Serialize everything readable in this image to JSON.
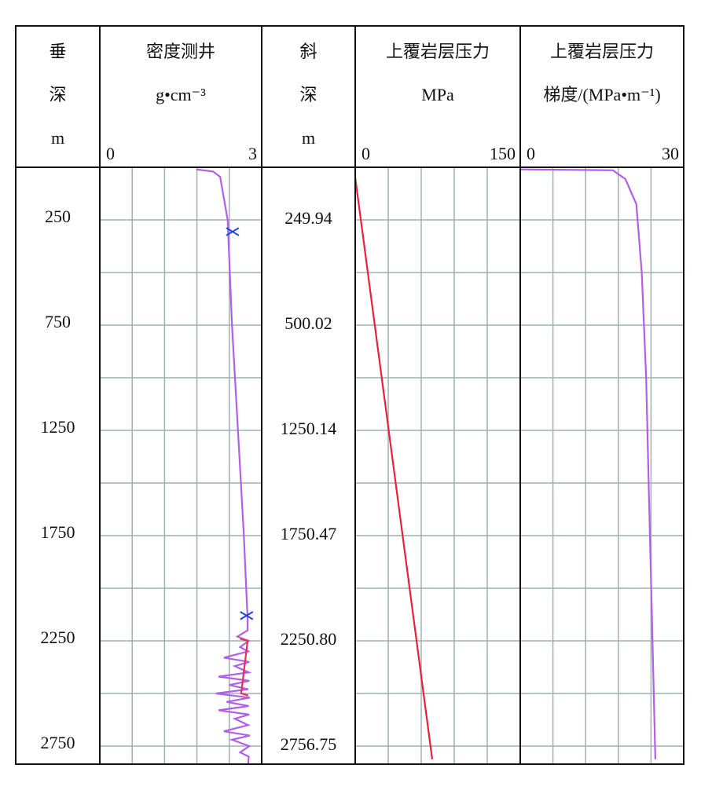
{
  "chart_data": {
    "type": "well-log",
    "ylim": [
      0,
      2836
    ],
    "yticks": [
      0,
      250,
      500,
      750,
      1000,
      1250,
      1500,
      1750,
      2000,
      2250,
      2500,
      2750
    ],
    "depth_tracks": [
      {
        "title": [
          "垂",
          "深",
          "m"
        ],
        "labels": [
          250,
          750,
          1250,
          1750,
          2250,
          2750
        ]
      },
      {
        "title": [
          "斜",
          "深",
          "m"
        ],
        "labels": [
          "249.94",
          "500.02",
          "1250.14",
          "1750.47",
          "2250.80",
          "2756.75"
        ]
      }
    ],
    "tracks": [
      {
        "title": "密度测井",
        "unit": "g•cm⁻³",
        "xlim": [
          0,
          3
        ],
        "xticks": [
          0.6,
          1.2,
          1.8,
          2.4
        ],
        "series": [
          {
            "color": "#b060e8",
            "x": [
              1.79,
              2.1,
              2.23,
              2.37,
              2.45,
              2.56,
              2.67,
              2.74,
              2.74,
              2.55,
              2.76,
              2.6,
              2.75,
              2.3,
              2.77,
              2.5,
              2.76,
              2.2,
              2.77,
              2.4,
              2.75,
              2.15,
              2.78,
              2.35,
              2.76,
              2.2,
              2.77,
              2.5,
              2.75,
              2.3,
              2.78,
              2.45,
              2.77,
              2.6,
              2.76,
              2.75
            ],
            "y": [
              10,
              20,
              45,
              250,
              750,
              1250,
              1750,
              2150,
              2200,
              2230,
              2250,
              2280,
              2300,
              2330,
              2350,
              2370,
              2400,
              2420,
              2440,
              2460,
              2480,
              2500,
              2520,
              2540,
              2560,
              2580,
              2600,
              2620,
              2650,
              2680,
              2700,
              2720,
              2750,
              2780,
              2800,
              2836
            ]
          },
          {
            "color": "#e83050",
            "x": [
              2.6,
              2.74,
              2.62,
              2.75
            ],
            "y": [
              2240,
              2250,
              2500,
              2510
            ]
          }
        ],
        "markers": {
          "color": "#2040e0",
          "x": [
            2.46,
            2.72
          ],
          "y": [
            306,
            2130
          ]
        }
      },
      {
        "title": "上覆岩层压力",
        "unit": "MPa",
        "xlim": [
          0,
          150
        ],
        "xticks": [
          30,
          60,
          90,
          120
        ],
        "series": [
          {
            "color": "#e8203c",
            "x": [
              0,
              70
            ],
            "y": [
              48,
              2813
            ]
          }
        ]
      },
      {
        "title": "上覆岩层压力",
        "unit": "梯度/(MPa•m⁻¹)",
        "xlim": [
          0,
          30
        ],
        "xticks": [
          6,
          12,
          18,
          24
        ],
        "series": [
          {
            "color": "#b060e8",
            "x": [
              0,
              17,
              19.3,
              21.3,
              22.3,
              23.1,
              23.8,
              24.5,
              24.8
            ],
            "y": [
              10,
              14,
              56,
              175,
              500,
              1000,
              1750,
              2500,
              2813
            ]
          }
        ]
      }
    ]
  }
}
